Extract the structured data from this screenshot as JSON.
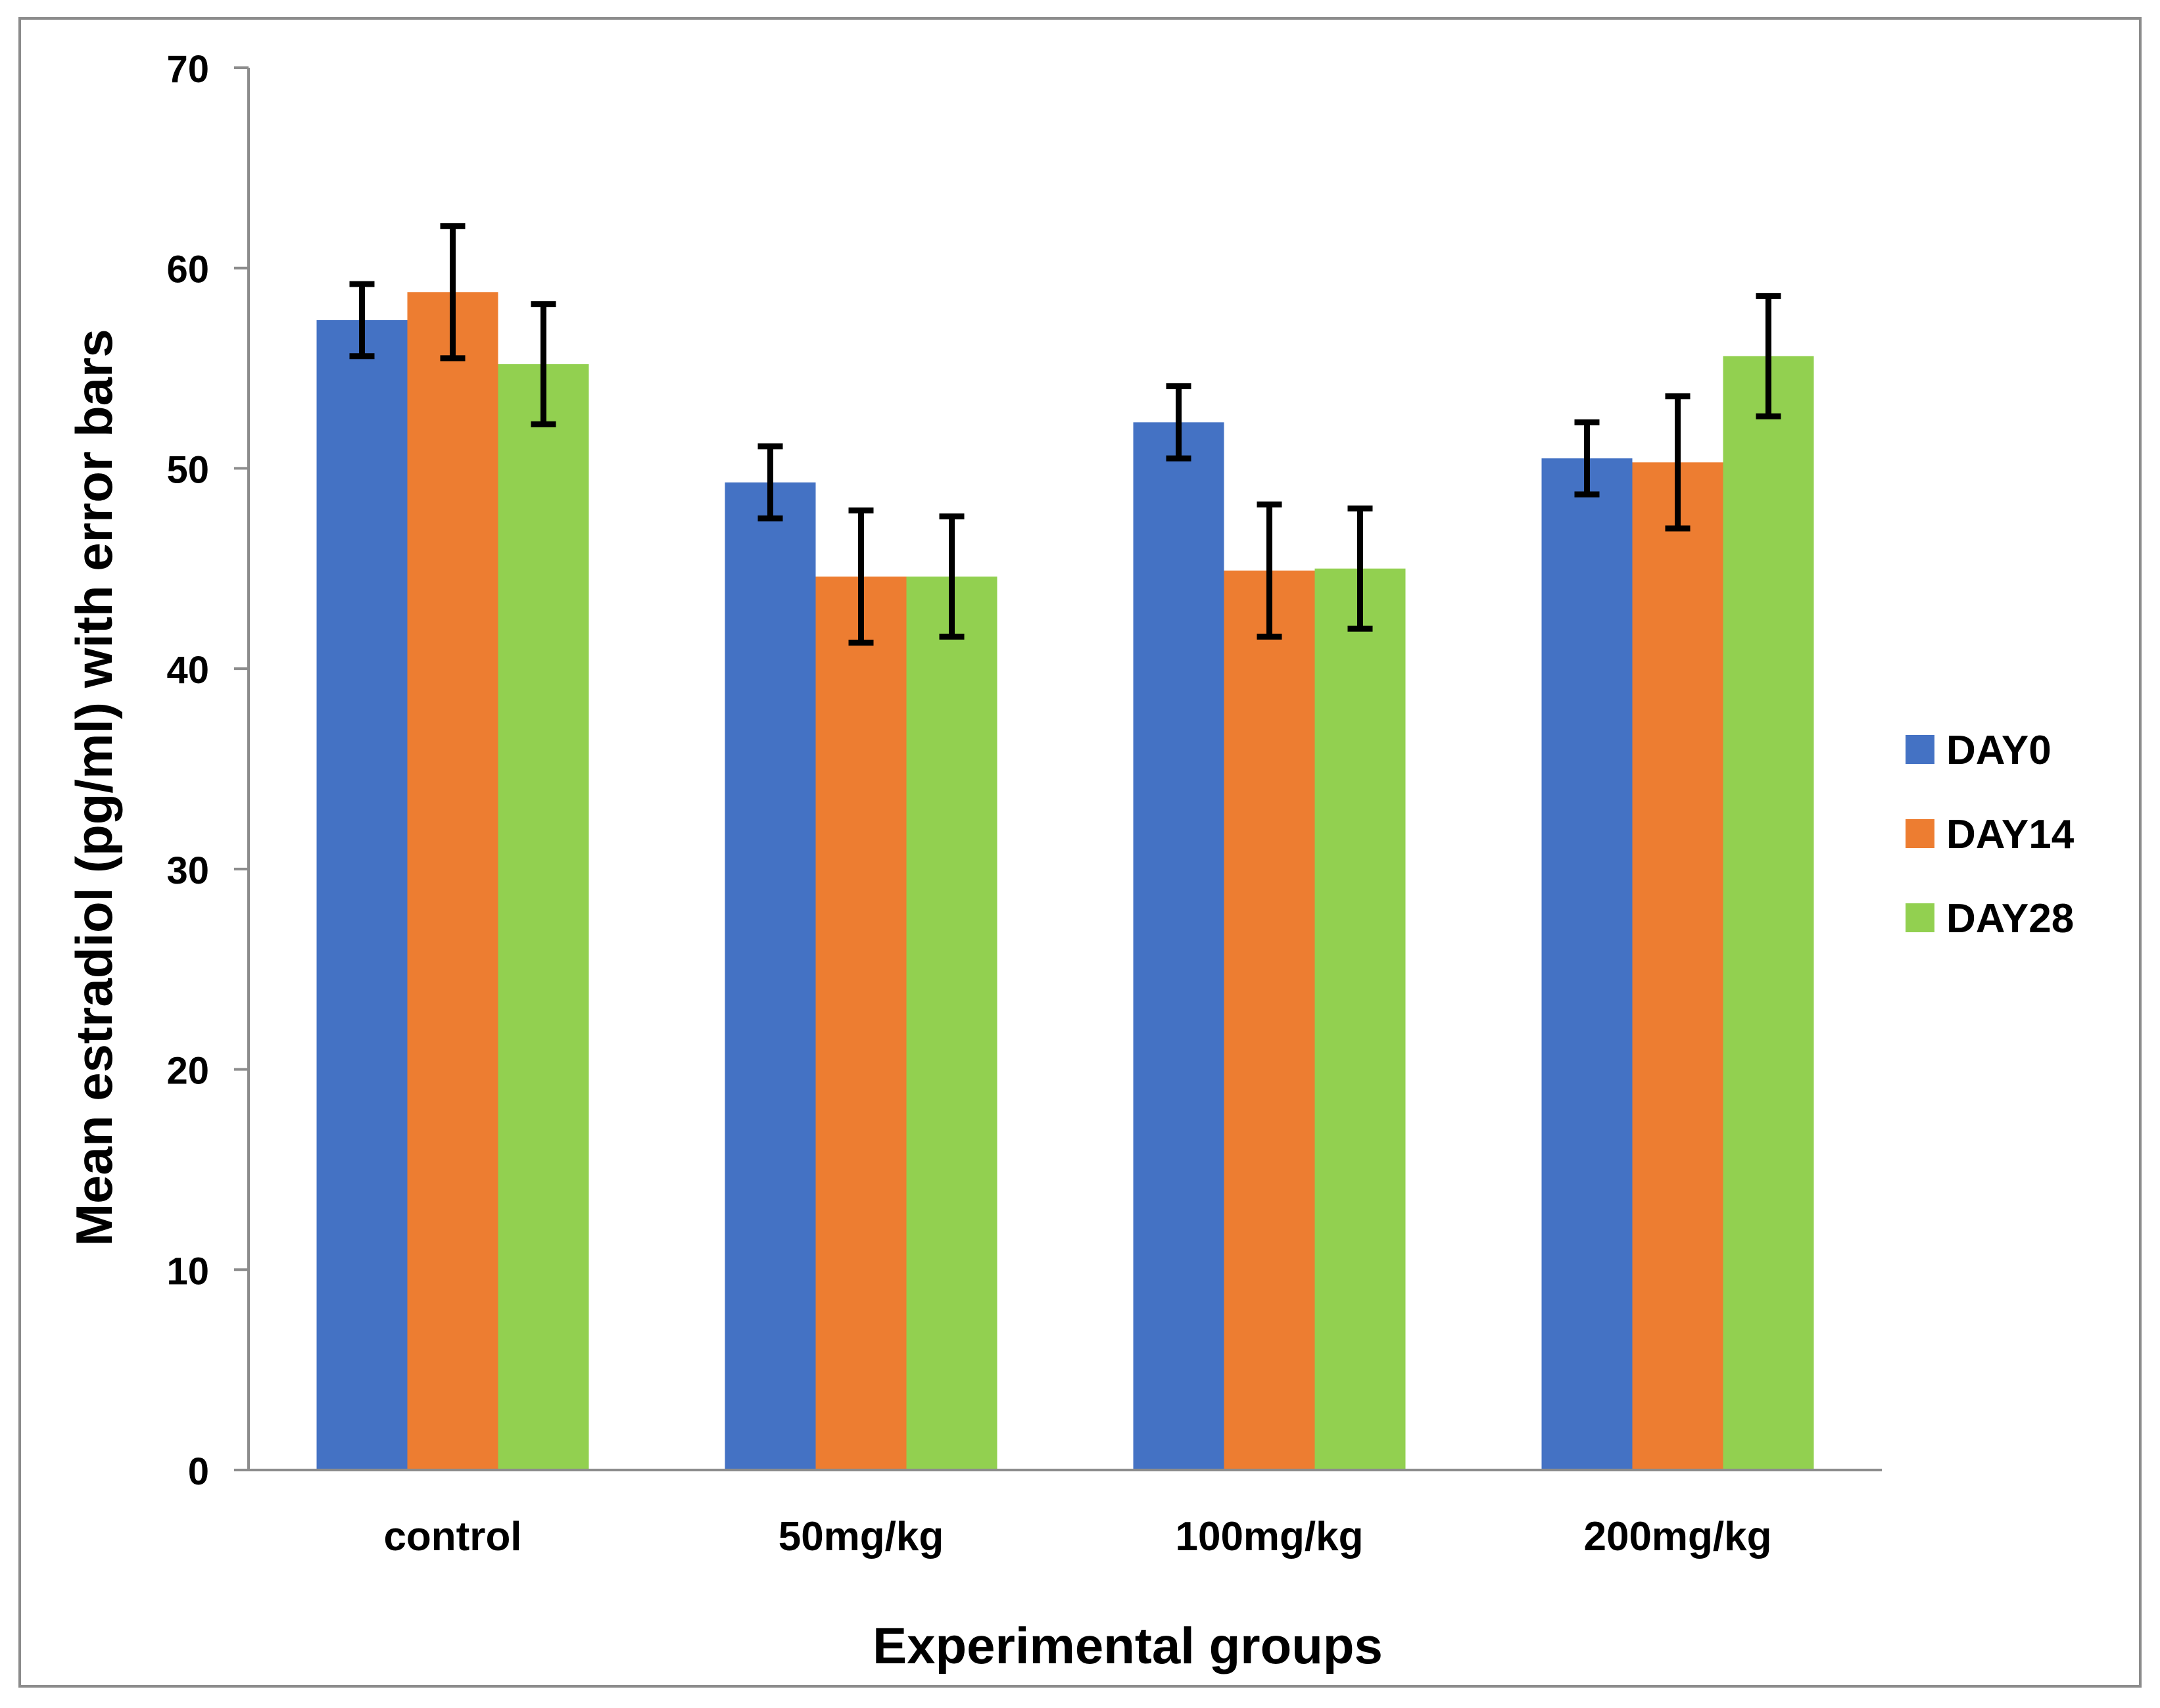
{
  "chart_data": {
    "type": "bar",
    "title": "",
    "xlabel": "Experimental groups",
    "ylabel": "Mean estradiol (pg/ml) with error bars",
    "ylim": [
      0,
      70
    ],
    "yticks": [
      0,
      10,
      20,
      30,
      40,
      50,
      60,
      70
    ],
    "grid": false,
    "legend_position": "right",
    "categories": [
      "control",
      "50mg/kg",
      "100mg/kg",
      "200mg/kg"
    ],
    "series": [
      {
        "name": "DAY0",
        "color": "#4472C4",
        "values": [
          57.4,
          49.3,
          52.3,
          50.5
        ],
        "error": [
          1.8,
          1.8,
          1.8,
          1.8
        ]
      },
      {
        "name": "DAY14",
        "color": "#ED7D31",
        "values": [
          58.8,
          44.6,
          44.9,
          50.3
        ],
        "error": [
          3.3,
          3.3,
          3.3,
          3.3
        ]
      },
      {
        "name": "DAY28",
        "color": "#92D050",
        "values": [
          55.2,
          44.6,
          45.0,
          55.6
        ],
        "error": [
          3.0,
          3.0,
          3.0,
          3.0
        ]
      }
    ]
  }
}
